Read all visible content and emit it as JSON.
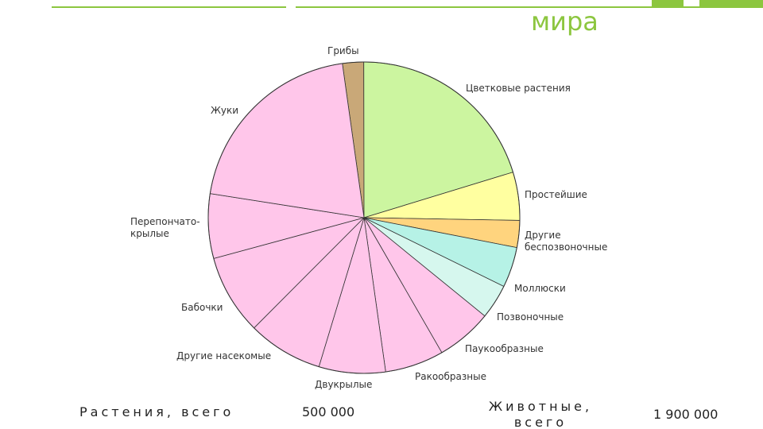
{
  "slide": {
    "title": "мира",
    "totals": [
      {
        "label": "Растения, всего",
        "value": "500 000"
      },
      {
        "label": "Животные, всего",
        "value": "1 900 000"
      }
    ]
  },
  "chart_data": {
    "type": "pie",
    "categories": [
      "Грибы",
      "Цветковые растения",
      "Простейшие",
      "Другие\nбеспозвоночные",
      "Моллюски",
      "Позвоночные",
      "Паукообразные",
      "Ракообразные",
      "Двукрылые",
      "Другие насекомые",
      "Бабочки",
      "Перепончато-\nкрылые",
      "Жуки"
    ],
    "values": [
      2.2,
      20.3,
      5,
      2.8,
      4.2,
      3.6,
      5.8,
      6.1,
      6.9,
      7.8,
      8.3,
      6.7,
      20.3
    ],
    "colors": [
      "#c9a878",
      "#ccf5a0",
      "#ffffa0",
      "#ffd47e",
      "#b6f2e6",
      "#d6f7ee",
      "#ffc6ea",
      "#ffc6ea",
      "#ffc6ea",
      "#ffc6ea",
      "#ffc6ea",
      "#ffc6ea",
      "#ffc6ea"
    ]
  }
}
